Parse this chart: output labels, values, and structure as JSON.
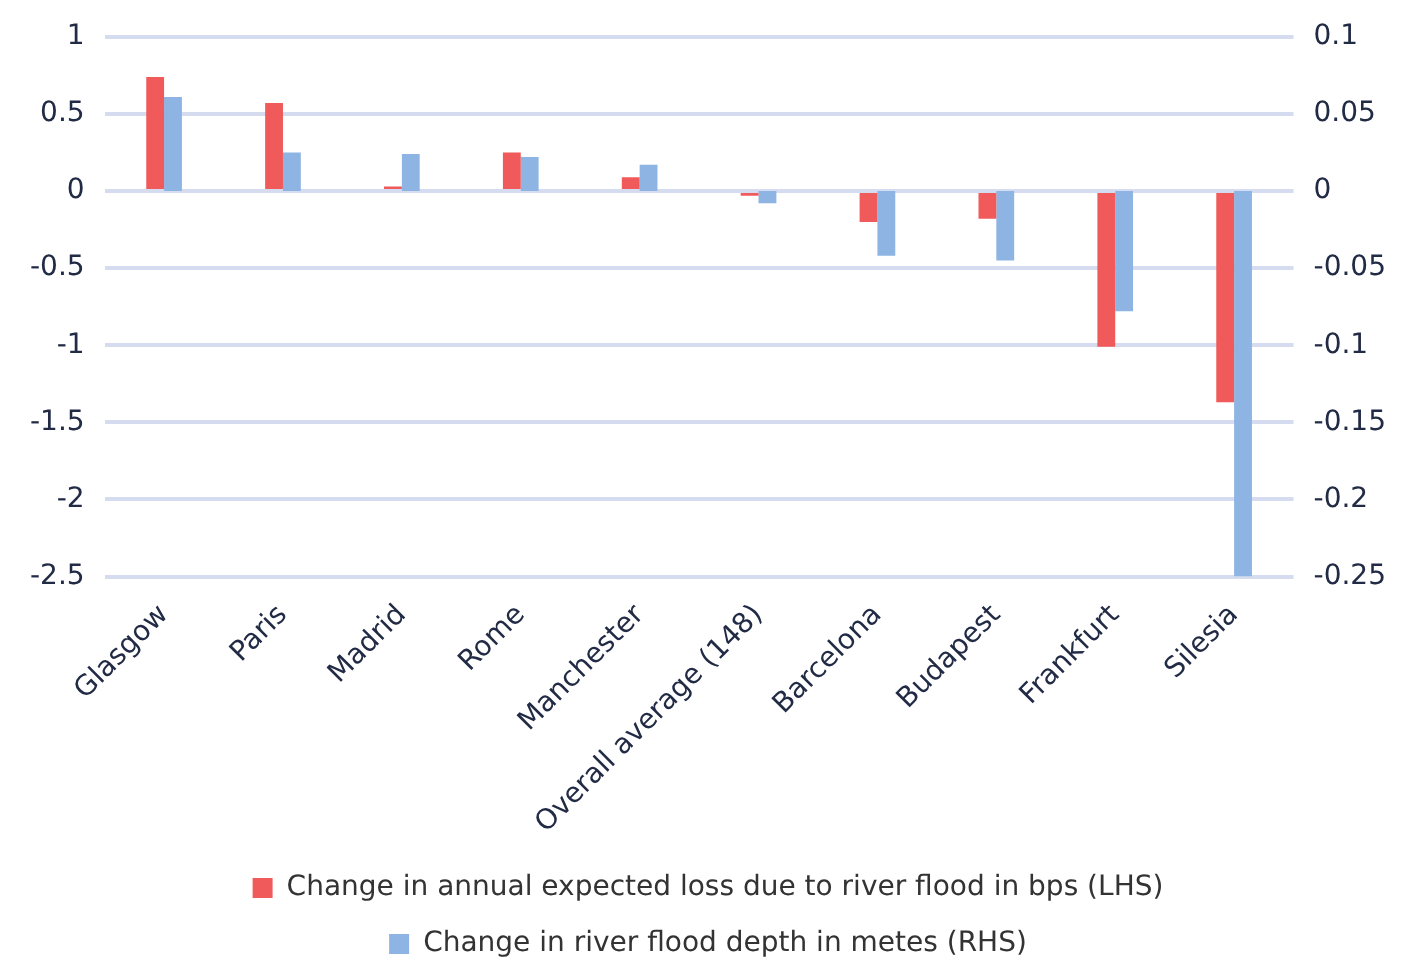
{
  "chart_data": {
    "type": "bar",
    "categories": [
      "Glasgow",
      "Paris",
      "Madrid",
      "Rome",
      "Manchester",
      "Overall average (148)",
      "Barcelona",
      "Budapest",
      "Frankfurt",
      "Silesia"
    ],
    "series": [
      {
        "name": "Change in annual expected loss due to river flood in bps (LHS)",
        "color": "#f05a5a",
        "values": [
          0.74,
          0.57,
          0.03,
          0.25,
          0.09,
          -0.03,
          -0.2,
          -0.18,
          -1.01,
          -1.37
        ]
      },
      {
        "name": "Change in river flood depth in metes (RHS)",
        "color": "#8db4e2",
        "axis": "y2",
        "values": [
          0.061,
          0.025,
          0.024,
          0.022,
          0.017,
          -0.008,
          -0.042,
          -0.045,
          -0.078,
          -0.25
        ]
      }
    ],
    "ylim": [
      -2.5,
      1
    ],
    "yticks": [
      1,
      0.5,
      0,
      -0.5,
      -1,
      -1.5,
      -2,
      -2.5
    ],
    "y2lim": [
      -0.25,
      0.1
    ],
    "y2ticks": [
      0.1,
      0.05,
      0,
      -0.05,
      -0.1,
      -0.15,
      -0.2,
      -0.25
    ],
    "grid": "y",
    "legend": "bottom"
  }
}
